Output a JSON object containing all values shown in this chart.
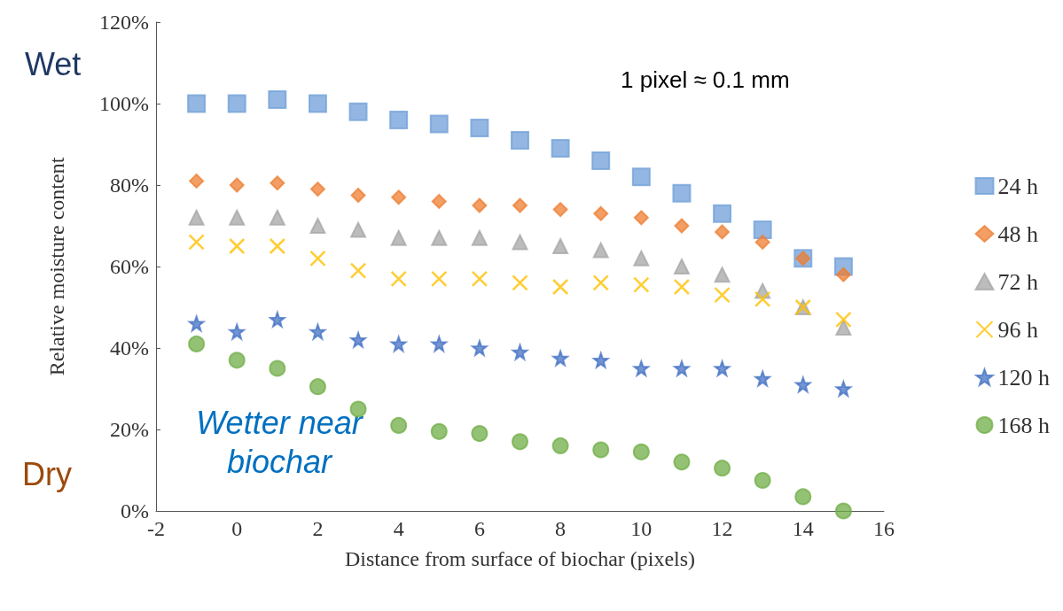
{
  "chart_data": {
    "type": "scatter",
    "xlabel": "Distance from surface of biochar (pixels)",
    "ylabel": "Relative moisture content",
    "x": [
      -1,
      0,
      1,
      2,
      3,
      4,
      5,
      6,
      7,
      8,
      9,
      10,
      11,
      12,
      13,
      14,
      15
    ],
    "series": [
      {
        "name": "24 h",
        "color": "#6f9fd8",
        "marker": "square",
        "values": [
          100,
          100,
          101,
          100,
          98,
          96,
          95,
          94,
          91,
          89,
          86,
          82,
          78,
          73,
          69,
          62,
          60
        ]
      },
      {
        "name": "48 h",
        "color": "#ed7d31",
        "marker": "diamond",
        "values": [
          81,
          80,
          80.5,
          79,
          77.5,
          77,
          76,
          75,
          75,
          74,
          73,
          72,
          70,
          68.5,
          66,
          62,
          58
        ]
      },
      {
        "name": "72 h",
        "color": "#a5a5a5",
        "marker": "triangle",
        "values": [
          72,
          72,
          72,
          70,
          69,
          67,
          67,
          67,
          66,
          65,
          64,
          62,
          60,
          58,
          54,
          50,
          45
        ]
      },
      {
        "name": "96 h",
        "color": "#ffc000",
        "marker": "cross",
        "values": [
          66,
          65,
          65,
          62,
          59,
          57,
          57,
          57,
          56,
          55,
          56,
          55.5,
          55,
          53,
          52,
          50,
          47
        ]
      },
      {
        "name": "120 h",
        "color": "#4472c4",
        "marker": "star",
        "values": [
          46,
          44,
          47,
          44,
          42,
          41,
          41,
          40,
          39,
          37.5,
          37,
          35,
          35,
          35,
          32.5,
          31,
          30
        ]
      },
      {
        "name": "168 h",
        "color": "#70ad47",
        "marker": "circle",
        "values": [
          41,
          37,
          35,
          30.5,
          25,
          21,
          19.5,
          19,
          17,
          16,
          15,
          14.5,
          12,
          10.5,
          7.5,
          3.5,
          0
        ]
      }
    ],
    "xlim": [
      -2,
      16
    ],
    "xticks": [
      -2,
      0,
      2,
      4,
      6,
      8,
      10,
      12,
      14,
      16
    ],
    "ylim": [
      0,
      120
    ],
    "yticks": [
      {
        "value": 0,
        "label": "0%"
      },
      {
        "value": 20,
        "label": "20%"
      },
      {
        "value": 40,
        "label": "40%"
      },
      {
        "value": 60,
        "label": "60%"
      },
      {
        "value": 80,
        "label": "80%"
      },
      {
        "value": 100,
        "label": "100%"
      },
      {
        "value": 120,
        "label": "120%"
      }
    ],
    "grid": false,
    "legend": "right",
    "annotations": [
      "Wet",
      "Dry",
      "Wetter near biochar",
      "1 pixel ≈ 0.1 mm"
    ]
  }
}
